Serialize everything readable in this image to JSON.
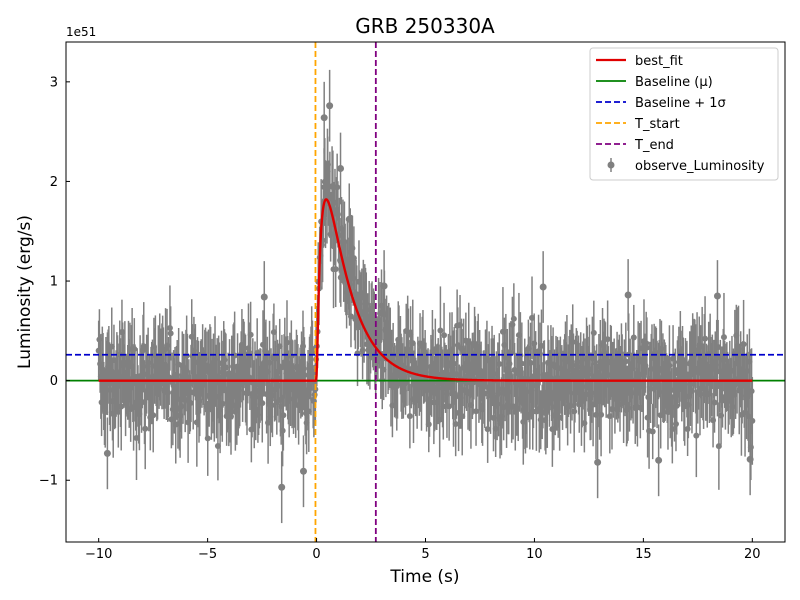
{
  "chart_data": {
    "type": "scatter",
    "title": "GRB 250330A",
    "xlabel": "Time (s)",
    "ylabel": "Luminosity (erg/s)",
    "y_scale_label": "1e51",
    "xlim": [
      -11.5,
      21.5
    ],
    "ylim": [
      -1.62,
      3.4
    ],
    "xticks": [
      -10,
      -5,
      0,
      5,
      10,
      15,
      20
    ],
    "xtick_labels": [
      "−10",
      "−5",
      "0",
      "5",
      "10",
      "15",
      "20"
    ],
    "yticks": [
      -1,
      0,
      1,
      2,
      3
    ],
    "ytick_labels": [
      "−1",
      "0",
      "1",
      "2",
      "3"
    ],
    "grid": false,
    "legend_position": "top-right",
    "series": [
      {
        "name": "best_fit",
        "kind": "line",
        "color": "#e00000",
        "peak_time": 0.45,
        "peak_value": 1.82
      },
      {
        "name": "Baseline (μ)",
        "kind": "hline",
        "color": "#008000",
        "value": 0.0
      },
      {
        "name": "Baseline + 1σ",
        "kind": "hline",
        "color": "#0000cc",
        "dash": "dashed",
        "value": 0.26
      },
      {
        "name": "T_start",
        "kind": "vline",
        "color": "#ffa500",
        "dash": "dashed",
        "value": -0.05
      },
      {
        "name": "T_end",
        "kind": "vline",
        "color": "#800080",
        "dash": "dashed",
        "value": 2.72
      },
      {
        "name": "observe_Luminosity",
        "kind": "errorbar",
        "color": "#808080",
        "x_range": [
          -10,
          20
        ],
        "n_points": 900,
        "noise_sigma": 0.32,
        "typical_error": 0.36
      }
    ],
    "highlighted_points": [
      {
        "x": 0.35,
        "y": 2.64
      },
      {
        "x": 0.6,
        "y": 2.76
      },
      {
        "x": 0.5,
        "y": 2.17
      },
      {
        "x": 1.1,
        "y": 2.13
      },
      {
        "x": 0.75,
        "y": 1.95
      },
      {
        "x": 1.5,
        "y": 1.62
      },
      {
        "x": -2.4,
        "y": 0.84
      },
      {
        "x": -1.6,
        "y": -1.07
      },
      {
        "x": -0.6,
        "y": -0.91
      },
      {
        "x": -9.6,
        "y": -0.73
      },
      {
        "x": 3.1,
        "y": 0.95
      },
      {
        "x": 10.4,
        "y": 0.94
      },
      {
        "x": 14.3,
        "y": 0.86
      },
      {
        "x": 18.4,
        "y": 0.85
      },
      {
        "x": 12.9,
        "y": -0.82
      },
      {
        "x": 15.7,
        "y": -0.8
      },
      {
        "x": 19.9,
        "y": -0.79
      }
    ]
  }
}
